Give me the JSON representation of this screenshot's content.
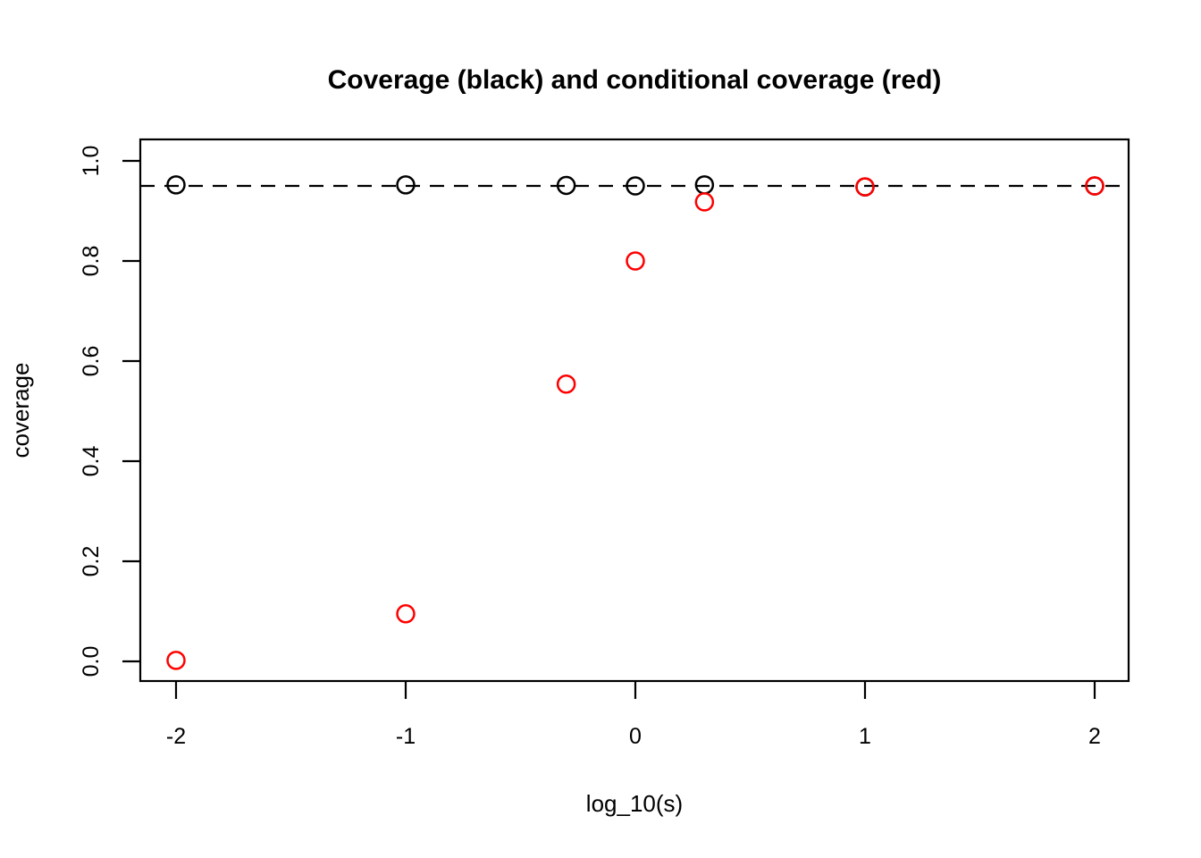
{
  "chart_data": {
    "type": "scatter",
    "title": "Coverage (black) and conditional coverage (red)",
    "xlabel": "log_10(s)",
    "ylabel": "coverage",
    "marker": "open-circle",
    "grid": false,
    "legend": "none",
    "xlim": [
      -2.16,
      2.16
    ],
    "ylim": [
      -0.04,
      1.04
    ],
    "x_ticks": [
      -2,
      -1,
      0,
      1,
      2
    ],
    "x_tick_labels": [
      "-2",
      "-1",
      "0",
      "1",
      "2"
    ],
    "y_ticks": [
      0.0,
      0.2,
      0.4,
      0.6,
      0.8,
      1.0
    ],
    "y_tick_labels": [
      "0.0",
      "0.2",
      "0.4",
      "0.6",
      "0.8",
      "1.0"
    ],
    "x": [
      -2,
      -1,
      -0.301,
      0,
      0.301,
      1,
      2
    ],
    "series": [
      {
        "name": "coverage",
        "color": "#000000",
        "values": [
          0.952,
          0.952,
          0.951,
          0.95,
          0.952,
          0.948,
          0.95
        ]
      },
      {
        "name": "conditional coverage",
        "color": "#FF0000",
        "values": [
          0.002,
          0.095,
          0.554,
          0.8,
          0.918,
          0.948,
          0.95
        ]
      }
    ],
    "reference_line": {
      "y": 0.95,
      "style": "dashed",
      "color": "#000000"
    },
    "colors": {
      "foreground": "#000000",
      "background": "#ffffff",
      "accent_red": "#FF0000"
    }
  }
}
